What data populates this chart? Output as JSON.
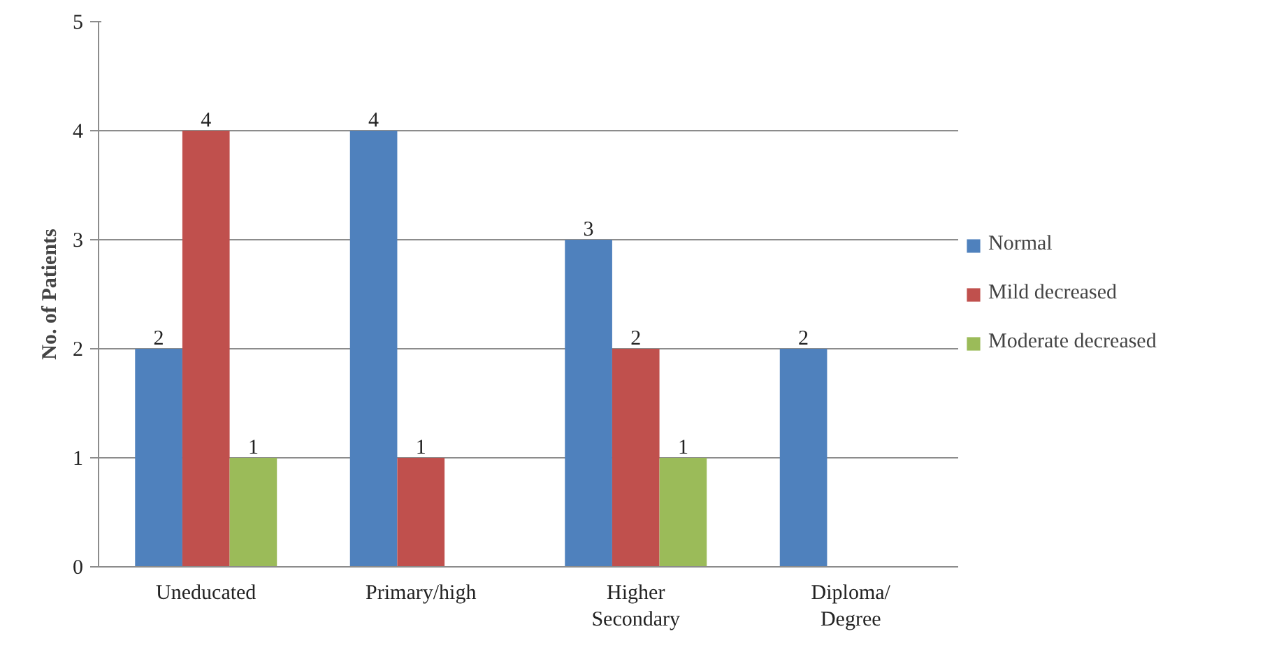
{
  "chart_data": {
    "type": "bar",
    "ylabel": "No. of Patients",
    "categories": [
      "Uneducated",
      "Primary/high",
      "Higher\nSecondary",
      "Diploma/\nDegree"
    ],
    "series": [
      {
        "name": "Normal",
        "color": "#4f81bd",
        "values": [
          2,
          4,
          3,
          2
        ]
      },
      {
        "name": "Mild decreased",
        "color": "#c0504d",
        "values": [
          4,
          1,
          2,
          null
        ]
      },
      {
        "name": "Moderate decreased",
        "color": "#9bbb59",
        "values": [
          1,
          null,
          1,
          null
        ]
      }
    ],
    "ylim": [
      0,
      5
    ],
    "yticks": [
      0,
      1,
      2,
      3,
      4,
      5
    ],
    "grid": "y",
    "legend": "right",
    "data_labels": true
  }
}
